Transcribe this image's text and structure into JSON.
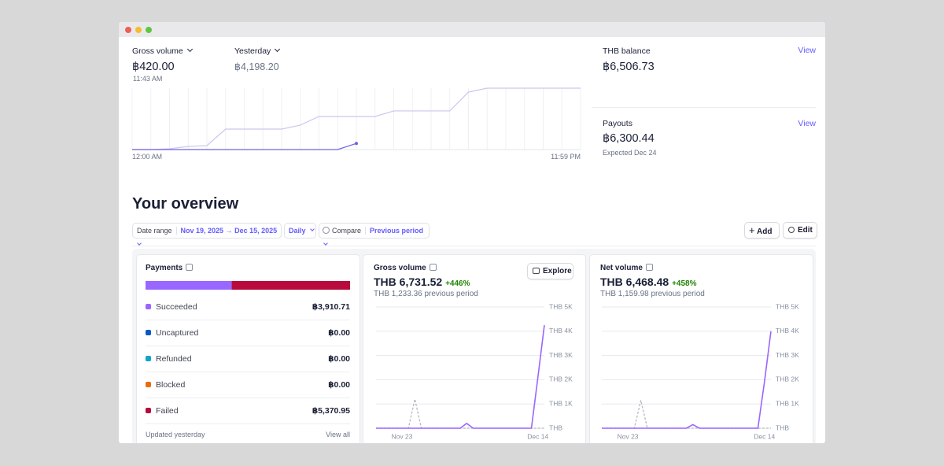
{
  "today": {
    "metric": "Gross volume",
    "value": "฿420.00",
    "time": "11:43 AM",
    "compare_label": "Yesterday",
    "compare_value": "฿4,198.20",
    "x_start": "12:00 AM",
    "x_end": "11:59 PM",
    "chart": {
      "type": "line",
      "series": [
        {
          "color": "#c9c8ee",
          "values": [
            0,
            0,
            54,
            215,
            270,
            1400,
            1400,
            1400,
            1400,
            1670,
            2260,
            2260,
            2260,
            2260,
            2640,
            2640,
            2640,
            2640,
            3930,
            4198.2,
            4198.2,
            4198.2,
            4198.2,
            4198.2,
            4198.2
          ]
        },
        {
          "color": "#6b63e4",
          "values": [
            0,
            0,
            0,
            0,
            0,
            0,
            0,
            0,
            0,
            0,
            0,
            0,
            420
          ]
        }
      ]
    }
  },
  "balances": [
    {
      "label": "THB balance",
      "action": "View",
      "value": "฿6,506.73"
    },
    {
      "label": "Payouts",
      "action": "View",
      "value": "฿6,300.44",
      "note": "Expected Dec 24"
    }
  ],
  "overview": {
    "title": "Your overview",
    "date_range_label": "Date range",
    "date_range": "Nov 19, 2025 → Dec 15, 2025",
    "interval": "Daily",
    "compare_label": "Compare",
    "compare": "Previous period",
    "add": "Add",
    "edit": "Edit"
  },
  "payments": {
    "title": "Payments",
    "rows": [
      {
        "label": "Succeeded",
        "color": "#9966ff",
        "value": 3910.71,
        "value_label": "฿3,910.71"
      },
      {
        "label": "Uncaptured",
        "color": "#0a58c2",
        "value": 0,
        "value_label": "฿0.00"
      },
      {
        "label": "Refunded",
        "color": "#0ea5c9",
        "value": 0,
        "value_label": "฿0.00"
      },
      {
        "label": "Blocked",
        "color": "#ec6b0c",
        "value": 0,
        "value_label": "฿0.00"
      },
      {
        "label": "Failed",
        "color": "#b80a3d",
        "value": 5370.95,
        "value_label": "฿5,370.95"
      }
    ],
    "updated": "Updated yesterday",
    "view_all": "View all"
  },
  "charts": [
    {
      "type": "line",
      "title": "Gross volume",
      "value": "THB 6,731.52",
      "change": "+446%",
      "previous": "THB 1,233.36 previous period",
      "explore": "Explore",
      "categories": [
        null,
        null,
        null,
        null,
        "Nov 23",
        null,
        null,
        null,
        null,
        null,
        null,
        null,
        null,
        null,
        null,
        null,
        null,
        null,
        null,
        null,
        null,
        null,
        null,
        null,
        null,
        "Dec 14",
        null
      ],
      "series": [
        {
          "color": "#b5b9c2",
          "values": [
            0,
            0,
            0,
            0,
            0,
            0,
            1200,
            0,
            0,
            0,
            0,
            0,
            0,
            0,
            0,
            0,
            0,
            0,
            0,
            0,
            0,
            0,
            0,
            0,
            0,
            0,
            0
          ]
        },
        {
          "color": "#9966ff",
          "values": [
            0,
            0,
            0,
            0,
            0,
            0,
            0,
            0,
            0,
            0,
            0,
            0,
            0,
            0,
            200,
            0,
            0,
            0,
            0,
            0,
            0,
            0,
            0,
            0,
            0,
            2100,
            4250
          ]
        }
      ],
      "ylim": [
        0,
        5000
      ],
      "yticks": [
        {
          "value": 0,
          "label": "THB"
        },
        {
          "value": 1000,
          "label": "THB 1K"
        },
        {
          "value": 2000,
          "label": "THB 2K"
        },
        {
          "value": 3000,
          "label": "THB 3K"
        },
        {
          "value": 4000,
          "label": "THB 4K"
        },
        {
          "value": 5000,
          "label": "THB 5K"
        }
      ]
    },
    {
      "type": "line",
      "title": "Net volume",
      "value": "THB 6,468.48",
      "change": "+458%",
      "previous": "THB 1,159.98 previous period",
      "categories": [
        null,
        null,
        null,
        null,
        "Nov 23",
        null,
        null,
        null,
        null,
        null,
        null,
        null,
        null,
        null,
        null,
        null,
        null,
        null,
        null,
        null,
        null,
        null,
        null,
        null,
        null,
        "Dec 14",
        null
      ],
      "series": [
        {
          "color": "#b5b9c2",
          "values": [
            0,
            0,
            0,
            0,
            0,
            0,
            1150,
            0,
            0,
            0,
            0,
            0,
            0,
            0,
            0,
            0,
            0,
            0,
            0,
            0,
            0,
            0,
            0,
            0,
            0,
            0,
            0
          ]
        },
        {
          "color": "#9966ff",
          "values": [
            0,
            0,
            0,
            0,
            0,
            0,
            0,
            0,
            0,
            0,
            0,
            0,
            0,
            0,
            150,
            0,
            0,
            0,
            0,
            0,
            0,
            0,
            0,
            0,
            0,
            1900,
            4000
          ]
        }
      ],
      "ylim": [
        0,
        5000
      ],
      "yticks": [
        {
          "value": 0,
          "label": "THB"
        },
        {
          "value": 1000,
          "label": "THB 1K"
        },
        {
          "value": 2000,
          "label": "THB 2K"
        },
        {
          "value": 3000,
          "label": "THB 3K"
        },
        {
          "value": 4000,
          "label": "THB 4K"
        },
        {
          "value": 5000,
          "label": "THB 5K"
        }
      ]
    }
  ]
}
